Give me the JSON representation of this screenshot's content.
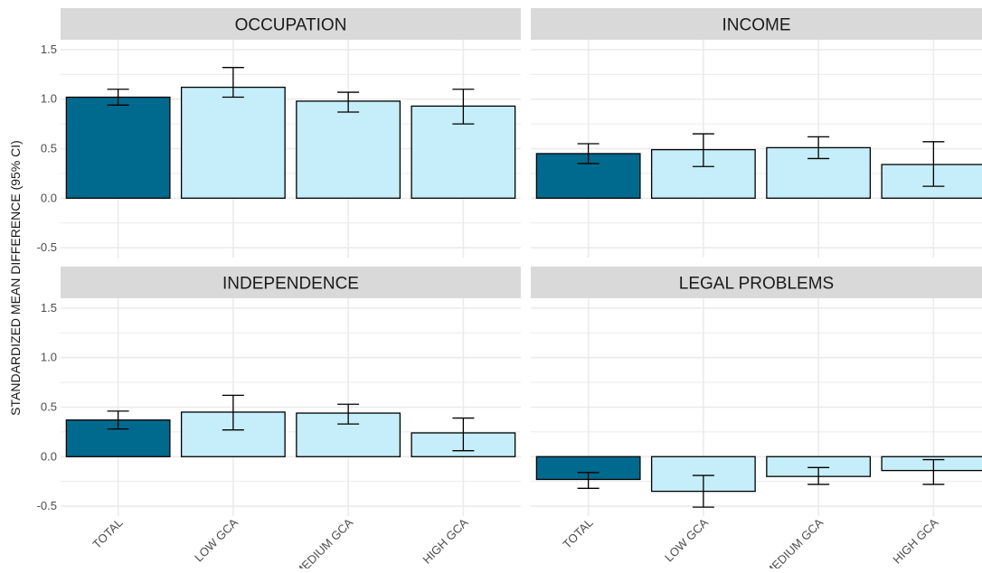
{
  "chart_data": {
    "type": "bar",
    "layout": "facet-grid-2x2",
    "ylabel": "STANDARDIZED MEAN DIFFERENCE (95% CI)",
    "xlabel": "",
    "ylim": [
      -0.6,
      1.6
    ],
    "yticks": [
      -0.5,
      0.0,
      0.5,
      1.0,
      1.5
    ],
    "ytick_labels": [
      "-0.5",
      "0.0",
      "0.5",
      "1.0",
      "1.5"
    ],
    "categories": [
      "TOTAL",
      "LOW GCA",
      "MEDIUM GCA",
      "HIGH GCA"
    ],
    "grid": true,
    "legend": "none",
    "colors": {
      "total": "#006a8e",
      "subgroup": "#c5eefa",
      "panel_bg": "#ffffff",
      "strip_bg": "#d9d9d9",
      "grid": "#ebebeb",
      "bar_outline": "#000000"
    },
    "panels": [
      {
        "title": "OCCUPATION",
        "values": [
          1.02,
          1.12,
          0.98,
          0.93
        ],
        "ci_low": [
          0.94,
          1.02,
          0.87,
          0.75
        ],
        "ci_high": [
          1.1,
          1.32,
          1.07,
          1.1
        ]
      },
      {
        "title": "INCOME",
        "values": [
          0.45,
          0.49,
          0.51,
          0.34
        ],
        "ci_low": [
          0.35,
          0.32,
          0.4,
          0.12
        ],
        "ci_high": [
          0.55,
          0.65,
          0.62,
          0.57
        ]
      },
      {
        "title": "INDEPENDENCE",
        "values": [
          0.37,
          0.45,
          0.44,
          0.24
        ],
        "ci_low": [
          0.28,
          0.27,
          0.33,
          0.06
        ],
        "ci_high": [
          0.46,
          0.62,
          0.53,
          0.39
        ]
      },
      {
        "title": "LEGAL PROBLEMS",
        "values": [
          -0.23,
          -0.35,
          -0.2,
          -0.14
        ],
        "ci_low": [
          -0.32,
          -0.51,
          -0.28,
          -0.28
        ],
        "ci_high": [
          -0.16,
          -0.19,
          -0.11,
          -0.03
        ]
      }
    ]
  }
}
